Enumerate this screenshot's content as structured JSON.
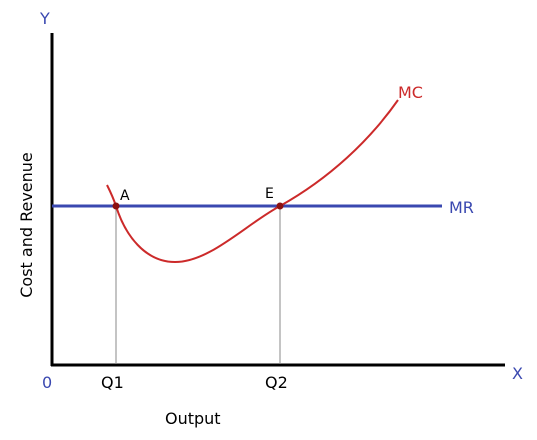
{
  "axes": {
    "y_label": "Y",
    "x_label": "X",
    "origin": "0",
    "y_title": "Cost and Revenue",
    "x_title": "Output"
  },
  "curves": {
    "mc": "MC",
    "mr": "MR"
  },
  "points": {
    "a": "A",
    "e": "E"
  },
  "quantities": {
    "q1": "Q1",
    "q2": "Q2"
  }
}
